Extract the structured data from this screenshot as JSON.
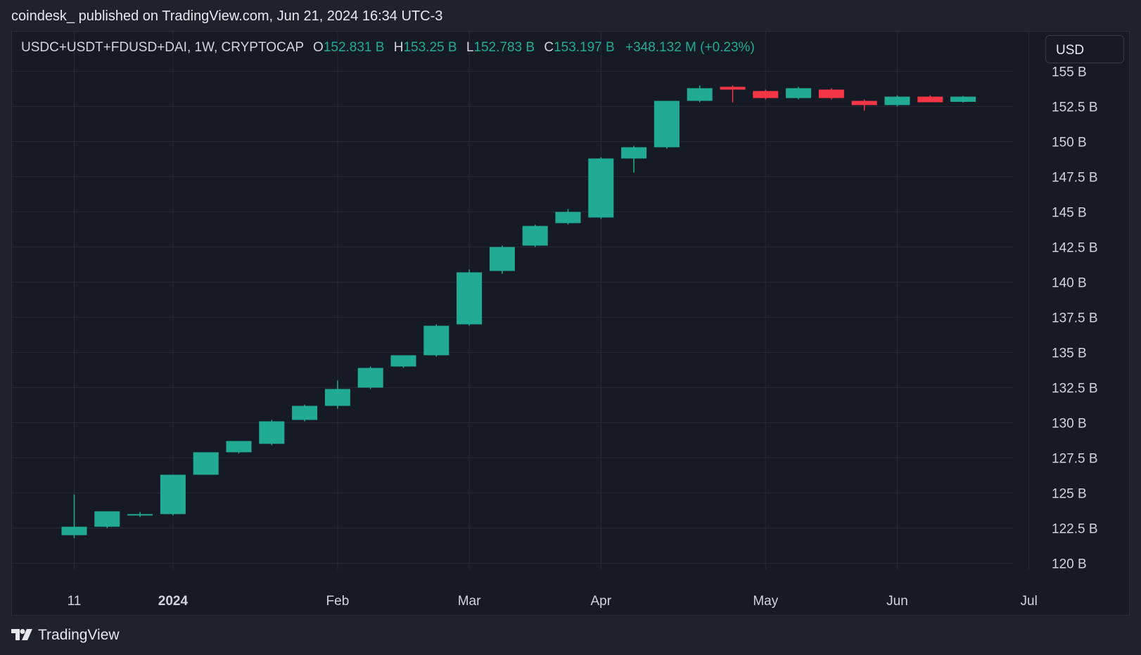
{
  "header": {
    "published": "coindesk_ published on TradingView.com, Jun 21, 2024 16:34 UTC-3"
  },
  "legend": {
    "symbol": "USDC+USDT+FDUSD+DAI, 1W, CRYPTOCAP",
    "open_label": "O",
    "open": "152.831 B",
    "high_label": "H",
    "high": "153.25 B",
    "low_label": "L",
    "low": "152.783 B",
    "close_label": "C",
    "close": "153.197 B",
    "change": "+348.132 M (+0.23%)"
  },
  "currency_button": "USD",
  "footer": {
    "brand": "TradingView",
    "logo_icon": "tradingview-logo-icon"
  },
  "colors": {
    "up": "#22ab94",
    "down": "#f23645",
    "grid": "#262a35",
    "background": "#161a25",
    "text": "#d1d4dc"
  },
  "chart_data": {
    "type": "candlestick",
    "unit": "B",
    "y_axis_position": "right",
    "ylim": [
      117.5,
      155
    ],
    "yticks": [
      "155 B",
      "152.5 B",
      "150 B",
      "147.5 B",
      "145 B",
      "142.5 B",
      "140 B",
      "137.5 B",
      "135 B",
      "132.5 B",
      "130 B",
      "127.5 B",
      "125 B",
      "122.5 B",
      "120 B"
    ],
    "ytick_values": [
      155,
      152.5,
      150,
      147.5,
      145,
      142.5,
      140,
      137.5,
      135,
      132.5,
      130,
      127.5,
      125,
      122.5,
      120
    ],
    "xticks": [
      {
        "label": "11",
        "week": 0,
        "bold": false
      },
      {
        "label": "2024",
        "week": 3,
        "bold": true
      },
      {
        "label": "Feb",
        "week": 8,
        "bold": false
      },
      {
        "label": "Mar",
        "week": 12,
        "bold": false
      },
      {
        "label": "Apr",
        "week": 16,
        "bold": false
      },
      {
        "label": "May",
        "week": 21,
        "bold": false
      },
      {
        "label": "Jun",
        "week": 25,
        "bold": false
      },
      {
        "label": "Jul",
        "week": 29,
        "bold": false
      }
    ],
    "candles": [
      {
        "o": 122.0,
        "h": 124.9,
        "l": 121.8,
        "c": 122.6
      },
      {
        "o": 122.6,
        "h": 123.7,
        "l": 122.5,
        "c": 123.7
      },
      {
        "o": 123.5,
        "h": 123.65,
        "l": 123.3,
        "c": 123.5
      },
      {
        "o": 123.5,
        "h": 126.3,
        "l": 123.4,
        "c": 126.3
      },
      {
        "o": 126.3,
        "h": 127.9,
        "l": 126.3,
        "c": 127.9
      },
      {
        "o": 127.9,
        "h": 128.7,
        "l": 127.8,
        "c": 128.7
      },
      {
        "o": 128.5,
        "h": 130.2,
        "l": 128.4,
        "c": 130.1
      },
      {
        "o": 130.2,
        "h": 131.3,
        "l": 130.1,
        "c": 131.2
      },
      {
        "o": 131.2,
        "h": 133.0,
        "l": 131.0,
        "c": 132.4
      },
      {
        "o": 132.5,
        "h": 134.0,
        "l": 132.4,
        "c": 133.9
      },
      {
        "o": 134.0,
        "h": 134.8,
        "l": 133.9,
        "c": 134.8
      },
      {
        "o": 134.8,
        "h": 137.0,
        "l": 134.7,
        "c": 136.9
      },
      {
        "o": 137.0,
        "h": 140.9,
        "l": 136.9,
        "c": 140.7
      },
      {
        "o": 140.8,
        "h": 142.6,
        "l": 140.6,
        "c": 142.5
      },
      {
        "o": 142.6,
        "h": 144.1,
        "l": 142.5,
        "c": 144.0
      },
      {
        "o": 144.2,
        "h": 145.2,
        "l": 144.1,
        "c": 145.0
      },
      {
        "o": 144.6,
        "h": 148.9,
        "l": 144.5,
        "c": 148.8
      },
      {
        "o": 148.8,
        "h": 149.7,
        "l": 147.8,
        "c": 149.6
      },
      {
        "o": 149.6,
        "h": 152.9,
        "l": 149.5,
        "c": 152.9
      },
      {
        "o": 152.9,
        "h": 154.0,
        "l": 152.8,
        "c": 153.8
      },
      {
        "o": 153.9,
        "h": 154.0,
        "l": 152.8,
        "c": 153.7
      },
      {
        "o": 153.6,
        "h": 153.7,
        "l": 153.0,
        "c": 153.1
      },
      {
        "o": 153.1,
        "h": 153.9,
        "l": 153.0,
        "c": 153.8
      },
      {
        "o": 153.7,
        "h": 153.8,
        "l": 153.0,
        "c": 153.1
      },
      {
        "o": 152.9,
        "h": 153.0,
        "l": 152.2,
        "c": 152.6
      },
      {
        "o": 152.6,
        "h": 153.3,
        "l": 152.5,
        "c": 153.2
      },
      {
        "o": 153.2,
        "h": 153.3,
        "l": 152.8,
        "c": 152.8
      },
      {
        "o": 152.83,
        "h": 153.25,
        "l": 152.78,
        "c": 153.2
      }
    ]
  }
}
